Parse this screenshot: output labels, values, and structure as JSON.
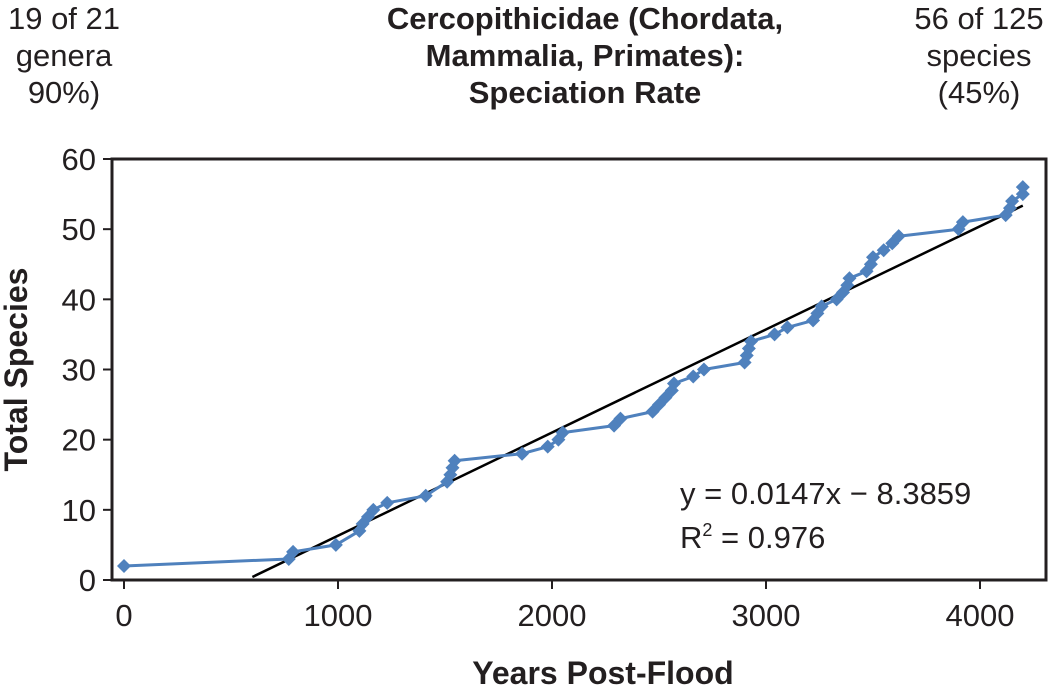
{
  "notes": {
    "left": [
      "19 of 21",
      "genera",
      "90%)"
    ],
    "right": [
      "56 of 125",
      "species",
      "(45%)"
    ]
  },
  "chart_data": {
    "type": "scatter",
    "title": [
      "Cercopithicidae (Chordata,",
      "Mammalia, Primates):",
      "Speciation Rate"
    ],
    "xlabel": "Years Post-Flood",
    "ylabel": "Total Species",
    "xlim": [
      0,
      4300
    ],
    "ylim": [
      0,
      60
    ],
    "xticks": [
      0,
      1000,
      2000,
      3000,
      4000
    ],
    "yticks": [
      0,
      10,
      20,
      30,
      40,
      50,
      60
    ],
    "grid": false,
    "series": [
      {
        "color": "#4f81bd",
        "marker": "diamond",
        "connected": true,
        "points": [
          [
            0,
            2
          ],
          [
            770,
            3
          ],
          [
            790,
            4
          ],
          [
            990,
            5
          ],
          [
            1100,
            7
          ],
          [
            1115,
            8
          ],
          [
            1140,
            9
          ],
          [
            1165,
            10
          ],
          [
            1230,
            11
          ],
          [
            1410,
            12
          ],
          [
            1510,
            14
          ],
          [
            1525,
            15
          ],
          [
            1535,
            16
          ],
          [
            1545,
            17
          ],
          [
            1860,
            18
          ],
          [
            1980,
            19
          ],
          [
            2030,
            20
          ],
          [
            2050,
            21
          ],
          [
            2290,
            22
          ],
          [
            2320,
            23
          ],
          [
            2470,
            24
          ],
          [
            2500,
            25
          ],
          [
            2530,
            26
          ],
          [
            2560,
            27
          ],
          [
            2570,
            28
          ],
          [
            2660,
            29
          ],
          [
            2710,
            30
          ],
          [
            2900,
            31
          ],
          [
            2910,
            32
          ],
          [
            2920,
            33
          ],
          [
            2930,
            34
          ],
          [
            3040,
            35
          ],
          [
            3100,
            36
          ],
          [
            3220,
            37
          ],
          [
            3240,
            38
          ],
          [
            3260,
            39
          ],
          [
            3330,
            40
          ],
          [
            3360,
            41
          ],
          [
            3380,
            42
          ],
          [
            3390,
            43
          ],
          [
            3470,
            44
          ],
          [
            3490,
            45
          ],
          [
            3500,
            46
          ],
          [
            3550,
            47
          ],
          [
            3590,
            48
          ],
          [
            3620,
            49
          ],
          [
            3900,
            50
          ],
          [
            3920,
            51
          ],
          [
            4120,
            52
          ],
          [
            4140,
            53
          ],
          [
            4150,
            54
          ],
          [
            4200,
            55
          ],
          [
            4200,
            56
          ]
        ]
      }
    ],
    "trendline": {
      "equation": "y = 0.0147x − 8.3859",
      "r2_label": "R",
      "r2_sup": "2",
      "r2_value": " = 0.976",
      "slope": 0.0147,
      "intercept": -8.3859,
      "x_range": [
        600,
        4200
      ],
      "color": "#000000"
    }
  }
}
